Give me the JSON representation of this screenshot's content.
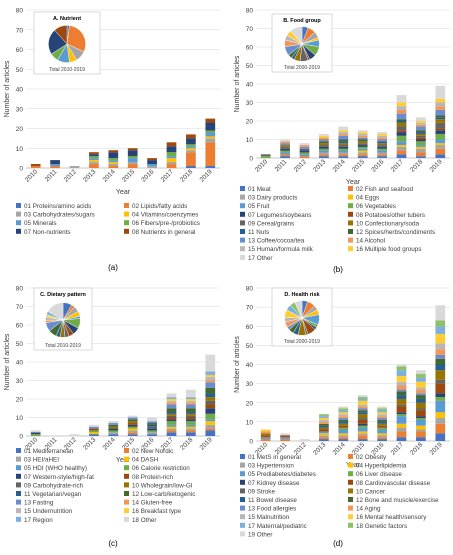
{
  "panel_labels": [
    "(a)",
    "(b)",
    "(c)",
    "(d)"
  ],
  "chart_data": [
    {
      "type": "bar",
      "title": "A. Nutrient",
      "pie_caption": "Total 2010-2019",
      "xlabel": "Year",
      "ylabel": "Number of articles",
      "ylim": [
        0,
        80
      ],
      "yticks": [
        0,
        10,
        20,
        30,
        40,
        50,
        60,
        70,
        80
      ],
      "categories": [
        "2010",
        "2011",
        "2012",
        "2013",
        "2014",
        "2015",
        "2016",
        "2017",
        "2018",
        "2019"
      ],
      "series": [
        {
          "name": "01 Proteins/amino acids",
          "color": "#4472c4",
          "values": [
            0,
            0,
            0,
            0,
            0,
            0,
            0,
            0,
            1,
            1
          ]
        },
        {
          "name": "02 Lipids/fatty acids",
          "color": "#ed7d31",
          "values": [
            1,
            1,
            0,
            2,
            1,
            2,
            0,
            2,
            7,
            12
          ]
        },
        {
          "name": "03 Carbohydrates/sugars",
          "color": "#a5a5a5",
          "values": [
            0,
            0,
            1,
            1,
            1,
            1,
            1,
            1,
            1,
            2
          ]
        },
        {
          "name": "04 Vitamins/coenzymes",
          "color": "#ffc000",
          "values": [
            0,
            0,
            0,
            1,
            1,
            0,
            0,
            2,
            1,
            1
          ]
        },
        {
          "name": "05 Minerals",
          "color": "#5b9bd5",
          "values": [
            0,
            1,
            0,
            1,
            1,
            2,
            1,
            1,
            1,
            2
          ]
        },
        {
          "name": "06 Fibers/pre-/probiotics",
          "color": "#70ad47",
          "values": [
            0,
            0,
            0,
            1,
            1,
            1,
            0,
            2,
            1,
            1
          ]
        },
        {
          "name": "07 Non-nutrients",
          "color": "#264478",
          "values": [
            0,
            2,
            0,
            1,
            3,
            3,
            2,
            3,
            3,
            4
          ]
        },
        {
          "name": "08 Nutrients in general",
          "color": "#9e480e",
          "values": [
            1,
            0,
            0,
            1,
            1,
            1,
            1,
            2,
            2,
            2
          ]
        }
      ]
    },
    {
      "type": "bar",
      "title": "B. Food group",
      "pie_caption": "Total 2000-2019",
      "xlabel": "Year",
      "ylabel": "Number of articles",
      "ylim": [
        0,
        80
      ],
      "yticks": [
        0,
        10,
        20,
        30,
        40,
        50,
        60,
        70,
        80
      ],
      "categories": [
        "2010",
        "2011",
        "2012",
        "2013",
        "2014",
        "2015",
        "2016",
        "2017",
        "2018",
        "2019"
      ],
      "series": [
        {
          "name": "01 Meat",
          "color": "#4472c4",
          "values": [
            0,
            1,
            0,
            1,
            1,
            1,
            1,
            2,
            1,
            2
          ]
        },
        {
          "name": "02 Fish and seafood",
          "color": "#ed7d31",
          "values": [
            0,
            1,
            1,
            1,
            1,
            1,
            1,
            2,
            2,
            3
          ]
        },
        {
          "name": "03 Dairy products",
          "color": "#a5a5a5",
          "values": [
            0,
            0,
            0,
            1,
            1,
            1,
            1,
            2,
            2,
            2
          ]
        },
        {
          "name": "04 Eggs",
          "color": "#ffc000",
          "values": [
            0,
            0,
            0,
            0,
            0,
            1,
            0,
            1,
            1,
            1
          ]
        },
        {
          "name": "05 Fruit",
          "color": "#5b9bd5",
          "values": [
            0,
            1,
            1,
            1,
            1,
            1,
            1,
            2,
            1,
            2
          ]
        },
        {
          "name": "06 Vegetables",
          "color": "#70ad47",
          "values": [
            1,
            1,
            1,
            1,
            1,
            1,
            1,
            3,
            2,
            3
          ]
        },
        {
          "name": "07 Legumes/soybeans",
          "color": "#264478",
          "values": [
            0,
            1,
            1,
            1,
            1,
            1,
            1,
            2,
            1,
            2
          ]
        },
        {
          "name": "08 Potatoes/other tubers",
          "color": "#9e480e",
          "values": [
            0,
            0,
            0,
            0,
            0,
            0,
            0,
            1,
            1,
            1
          ]
        },
        {
          "name": "09 Cereal/grains",
          "color": "#636363",
          "values": [
            1,
            1,
            1,
            1,
            1,
            1,
            1,
            2,
            1,
            3
          ]
        },
        {
          "name": "10 Confectionary/soda",
          "color": "#997300",
          "values": [
            0,
            1,
            0,
            1,
            1,
            1,
            1,
            2,
            1,
            2
          ]
        },
        {
          "name": "11 Nuts",
          "color": "#255e91",
          "values": [
            0,
            0,
            0,
            0,
            1,
            0,
            1,
            1,
            1,
            1
          ]
        },
        {
          "name": "12 Spices/herbs/condiments",
          "color": "#43682b",
          "values": [
            0,
            0,
            0,
            1,
            1,
            1,
            0,
            1,
            1,
            1
          ]
        },
        {
          "name": "13 Coffee/cocoa/tea",
          "color": "#698ed0",
          "values": [
            0,
            1,
            1,
            1,
            2,
            1,
            1,
            3,
            2,
            3
          ]
        },
        {
          "name": "14 Alcohol",
          "color": "#f1975a",
          "values": [
            0,
            1,
            1,
            1,
            1,
            1,
            1,
            2,
            1,
            2
          ]
        },
        {
          "name": "15 Human/formula milk",
          "color": "#b7b7b7",
          "values": [
            0,
            0,
            0,
            0,
            1,
            1,
            1,
            2,
            1,
            2
          ]
        },
        {
          "name": "16 Multiple food groups",
          "color": "#ffcd33",
          "values": [
            0,
            0,
            0,
            1,
            1,
            1,
            1,
            2,
            1,
            2
          ]
        },
        {
          "name": "17 Other",
          "color": "#d9d9d9",
          "values": [
            0,
            1,
            1,
            1,
            2,
            1,
            1,
            4,
            2,
            7
          ]
        }
      ]
    },
    {
      "type": "bar",
      "title": "C. Dietary pattern",
      "pie_caption": "Total 2010-2019",
      "xlabel": "Year",
      "ylabel": "Number of articles",
      "ylim": [
        0,
        80
      ],
      "yticks": [
        0,
        10,
        20,
        30,
        40,
        50,
        60,
        70,
        80
      ],
      "categories": [
        "2010",
        "2011",
        "2012",
        "2013",
        "2014",
        "2015",
        "2016",
        "2017",
        "2018",
        "2019"
      ],
      "series": [
        {
          "name": "01 Mediterranean",
          "color": "#4472c4",
          "values": [
            0,
            0,
            0,
            1,
            1,
            1,
            1,
            2,
            2,
            3
          ]
        },
        {
          "name": "02 New Nordic",
          "color": "#ed7d31",
          "values": [
            0,
            0,
            0,
            0,
            0,
            1,
            0,
            1,
            1,
            1
          ]
        },
        {
          "name": "03 HEI/aHEI",
          "color": "#a5a5a5",
          "values": [
            0,
            0,
            0,
            0,
            1,
            1,
            1,
            1,
            1,
            2
          ]
        },
        {
          "name": "04 DASH",
          "color": "#ffc000",
          "values": [
            0,
            0,
            0,
            1,
            0,
            1,
            0,
            1,
            1,
            2
          ]
        },
        {
          "name": "05 HDI (WHO healthy)",
          "color": "#5b9bd5",
          "values": [
            0,
            0,
            0,
            0,
            0,
            0,
            0,
            1,
            1,
            1
          ]
        },
        {
          "name": "06 Calorie restriction",
          "color": "#70ad47",
          "values": [
            1,
            0,
            0,
            1,
            1,
            1,
            1,
            2,
            2,
            3
          ]
        },
        {
          "name": "07 Western-style/high-fat",
          "color": "#264478",
          "values": [
            1,
            0,
            0,
            0,
            1,
            1,
            1,
            1,
            1,
            3
          ]
        },
        {
          "name": "08 Protein-rich",
          "color": "#9e480e",
          "values": [
            0,
            0,
            0,
            1,
            0,
            1,
            0,
            1,
            1,
            2
          ]
        },
        {
          "name": "09 Carbohydrate-rich",
          "color": "#636363",
          "values": [
            0,
            0,
            0,
            0,
            0,
            0,
            1,
            1,
            1,
            2
          ]
        },
        {
          "name": "10 Wholegrain/low-GI",
          "color": "#997300",
          "values": [
            0,
            0,
            0,
            0,
            1,
            1,
            0,
            1,
            1,
            2
          ]
        },
        {
          "name": "11 Vegetarian/vegan",
          "color": "#255e91",
          "values": [
            0,
            0,
            0,
            0,
            0,
            0,
            1,
            1,
            1,
            2
          ]
        },
        {
          "name": "12 Low-carb/ketogenic",
          "color": "#43682b",
          "values": [
            0,
            0,
            0,
            0,
            1,
            1,
            1,
            2,
            2,
            3
          ]
        },
        {
          "name": "13 Fasting",
          "color": "#698ed0",
          "values": [
            0,
            0,
            0,
            1,
            1,
            1,
            1,
            2,
            2,
            3
          ]
        },
        {
          "name": "14 Gluten-free",
          "color": "#f1975a",
          "values": [
            0,
            0,
            0,
            0,
            0,
            0,
            0,
            1,
            1,
            1
          ]
        },
        {
          "name": "15 Undernutrition",
          "color": "#b7b7b7",
          "values": [
            0,
            0,
            0,
            0,
            0,
            0,
            0,
            1,
            1,
            2
          ]
        },
        {
          "name": "16 Breakfast type",
          "color": "#ffcd33",
          "values": [
            0,
            0,
            0,
            0,
            0,
            0,
            0,
            1,
            1,
            1
          ]
        },
        {
          "name": "17 Region",
          "color": "#7cafdd",
          "values": [
            0,
            0,
            0,
            0,
            0,
            0,
            0,
            1,
            1,
            2
          ]
        },
        {
          "name": "18 Other",
          "color": "#d9d9d9",
          "values": [
            1,
            0,
            1,
            1,
            1,
            1,
            2,
            2,
            4,
            9
          ]
        }
      ]
    },
    {
      "type": "bar",
      "title": "D. Health risk",
      "pie_caption": "Total 2000-2019",
      "xlabel": "Year",
      "ylabel": "Number of articles",
      "ylim": [
        0,
        80
      ],
      "yticks": [
        0,
        10,
        20,
        30,
        40,
        50,
        60,
        70,
        80
      ],
      "categories": [
        "2010",
        "2011",
        "2012",
        "2013",
        "2014",
        "2015",
        "2016",
        "2017",
        "2018",
        "2019"
      ],
      "series": [
        {
          "name": "01 MetS in general",
          "color": "#4472c4",
          "values": [
            0,
            0,
            0,
            1,
            1,
            1,
            1,
            2,
            2,
            4
          ]
        },
        {
          "name": "02 Obesity",
          "color": "#ed7d31",
          "values": [
            1,
            1,
            0,
            1,
            1,
            2,
            1,
            3,
            3,
            5
          ]
        },
        {
          "name": "03 Hypertension",
          "color": "#a5a5a5",
          "values": [
            0,
            0,
            0,
            1,
            1,
            1,
            1,
            2,
            1,
            3
          ]
        },
        {
          "name": "04 Hyperlipidemia",
          "color": "#ffc000",
          "values": [
            0,
            0,
            0,
            1,
            1,
            1,
            1,
            2,
            2,
            3
          ]
        },
        {
          "name": "05 Prediabetes/diabetes",
          "color": "#5b9bd5",
          "values": [
            1,
            1,
            0,
            1,
            2,
            2,
            2,
            4,
            3,
            6
          ]
        },
        {
          "name": "06 Liver disease",
          "color": "#70ad47",
          "values": [
            0,
            0,
            0,
            0,
            1,
            1,
            1,
            1,
            1,
            2
          ]
        },
        {
          "name": "07 Kidney disease",
          "color": "#264478",
          "values": [
            0,
            0,
            0,
            0,
            0,
            1,
            0,
            1,
            1,
            2
          ]
        },
        {
          "name": "08 Cardiovascular disease",
          "color": "#9e480e",
          "values": [
            1,
            1,
            0,
            1,
            1,
            2,
            1,
            3,
            3,
            5
          ]
        },
        {
          "name": "09 Stroke",
          "color": "#636363",
          "values": [
            0,
            0,
            0,
            0,
            0,
            1,
            0,
            1,
            1,
            2
          ]
        },
        {
          "name": "10 Cancer",
          "color": "#997300",
          "values": [
            1,
            0,
            0,
            1,
            1,
            2,
            1,
            3,
            3,
            5
          ]
        },
        {
          "name": "11 Bowel disease",
          "color": "#255e91",
          "values": [
            0,
            0,
            0,
            1,
            1,
            1,
            1,
            2,
            2,
            3
          ]
        },
        {
          "name": "12 Bone and muscle/exercise",
          "color": "#43682b",
          "values": [
            0,
            0,
            0,
            1,
            1,
            1,
            1,
            2,
            2,
            3
          ]
        },
        {
          "name": "13 Food allergies",
          "color": "#698ed0",
          "values": [
            0,
            0,
            0,
            0,
            1,
            1,
            1,
            1,
            1,
            2
          ]
        },
        {
          "name": "14 Aging",
          "color": "#f1975a",
          "values": [
            1,
            0,
            0,
            1,
            1,
            1,
            1,
            2,
            2,
            3
          ]
        },
        {
          "name": "15 Malnutrition",
          "color": "#b7b7b7",
          "values": [
            0,
            0,
            0,
            1,
            1,
            1,
            1,
            2,
            1,
            3
          ]
        },
        {
          "name": "16 Mental health/sensory",
          "color": "#ffcd33",
          "values": [
            1,
            0,
            0,
            1,
            1,
            2,
            1,
            3,
            3,
            5
          ]
        },
        {
          "name": "17 Maternal/pediatric",
          "color": "#7cafdd",
          "values": [
            0,
            0,
            0,
            1,
            1,
            1,
            1,
            3,
            2,
            4
          ]
        },
        {
          "name": "18 Genetic factors",
          "color": "#8cc168",
          "values": [
            0,
            0,
            0,
            1,
            1,
            1,
            1,
            2,
            2,
            3
          ]
        },
        {
          "name": "19 Other",
          "color": "#d9d9d9",
          "values": [
            0,
            1,
            1,
            0,
            1,
            1,
            1,
            1,
            2,
            8
          ]
        }
      ]
    }
  ]
}
